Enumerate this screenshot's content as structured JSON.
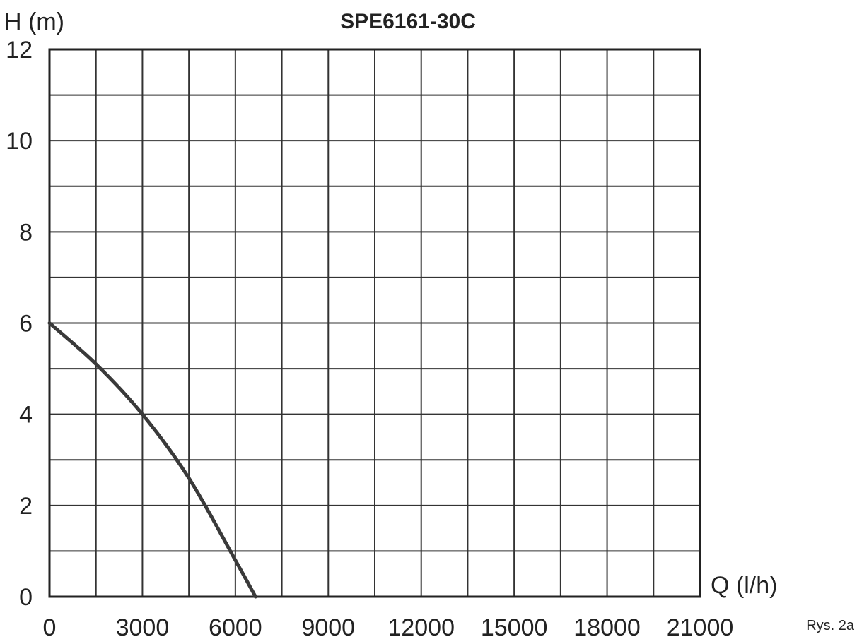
{
  "chart_data": {
    "type": "line",
    "title": "SPE6161-30C",
    "ylabel": "H (m)",
    "xlabel": "Q (l/h)",
    "caption": "Rys. 2a",
    "xlim": [
      0,
      21000
    ],
    "ylim": [
      0,
      12
    ],
    "x_ticks": [
      "0",
      "3000",
      "6000",
      "9000",
      "12000",
      "15000",
      "18000",
      "21000"
    ],
    "y_ticks": [
      "0",
      "2",
      "4",
      "6",
      "8",
      "10",
      "12"
    ],
    "x_grid_step": 1500,
    "y_grid_step": 1,
    "grid": true,
    "line_color": "#3a3a3a",
    "series": [
      {
        "x": [
          0,
          1500,
          3000,
          4500,
          6000,
          6650
        ],
        "y": [
          6.0,
          5.1,
          4.0,
          2.6,
          0.8,
          0.0
        ]
      }
    ]
  }
}
